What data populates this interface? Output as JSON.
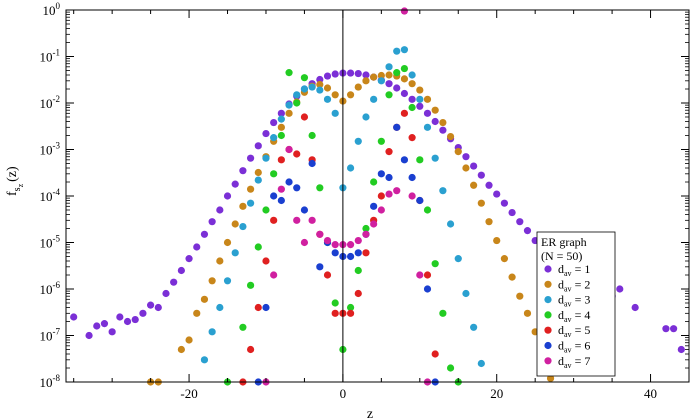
{
  "chart_data": {
    "type": "scatter",
    "title": "",
    "xlabel": "z",
    "ylabel_main": "f",
    "ylabel_sub1": "s",
    "ylabel_sub2": "z",
    "ylabel_tail": "(z)",
    "xlim": [
      -36,
      45
    ],
    "ylim": [
      1e-08,
      1
    ],
    "yscale": "log",
    "grid": false,
    "legend_position": "bottom-right",
    "legend_title_line1": "ER graph",
    "legend_title_line2": "(N = 50)",
    "x_ticks": [
      {
        "value": -20,
        "label": "-20"
      },
      {
        "value": 0,
        "label": "0"
      },
      {
        "value": 20,
        "label": "20"
      },
      {
        "value": 40,
        "label": "40"
      }
    ],
    "y_ticks": [
      {
        "exp": 0,
        "base": "10",
        "sup": "0"
      },
      {
        "exp": -1,
        "base": "10",
        "sup": "-1"
      },
      {
        "exp": -2,
        "base": "10",
        "sup": "-2"
      },
      {
        "exp": -3,
        "base": "10",
        "sup": "-3"
      },
      {
        "exp": -4,
        "base": "10",
        "sup": "-4"
      },
      {
        "exp": -5,
        "base": "10",
        "sup": "-5"
      },
      {
        "exp": -6,
        "base": "10",
        "sup": "-6"
      },
      {
        "exp": -7,
        "base": "10",
        "sup": "-7"
      },
      {
        "exp": -8,
        "base": "10",
        "sup": "-8"
      }
    ],
    "series": [
      {
        "name": "d_av = 1",
        "label_main": "d",
        "label_sub": "av",
        "label_tail": " = 1",
        "color": "#7b2fd6",
        "points": [
          [
            -35,
            2.5e-07
          ],
          [
            -33,
            1e-07
          ],
          [
            -32,
            1.6e-07
          ],
          [
            -31,
            1.8e-07
          ],
          [
            -30,
            1.2e-07
          ],
          [
            -29,
            2.5e-07
          ],
          [
            -28,
            2e-07
          ],
          [
            -27,
            2.2e-07
          ],
          [
            -26,
            3e-07
          ],
          [
            -25,
            4.5e-07
          ],
          [
            -24,
            4e-07
          ],
          [
            -23,
            8e-07
          ],
          [
            -22,
            1.4e-06
          ],
          [
            -21,
            2.5e-06
          ],
          [
            -20,
            4.5e-06
          ],
          [
            -19,
            8e-06
          ],
          [
            -18,
            1.5e-05
          ],
          [
            -17,
            2.8e-05
          ],
          [
            -16,
            5e-05
          ],
          [
            -15,
            0.0001
          ],
          [
            -14,
            0.00018
          ],
          [
            -13,
            0.00035
          ],
          [
            -12,
            0.00065
          ],
          [
            -11,
            0.0012
          ],
          [
            -10,
            0.0022
          ],
          [
            -9,
            0.0038
          ],
          [
            -8,
            0.006
          ],
          [
            -7,
            0.0095
          ],
          [
            -6,
            0.014
          ],
          [
            -5,
            0.02
          ],
          [
            -4,
            0.026
          ],
          [
            -3,
            0.032
          ],
          [
            -2,
            0.038
          ],
          [
            -1,
            0.042
          ],
          [
            0,
            0.044
          ],
          [
            1,
            0.044
          ],
          [
            2,
            0.043
          ],
          [
            3,
            0.04
          ],
          [
            4,
            0.036
          ],
          [
            5,
            0.031
          ],
          [
            6,
            0.026
          ],
          [
            7,
            0.021
          ],
          [
            8,
            0.016
          ],
          [
            9,
            0.012
          ],
          [
            10,
            0.0085
          ],
          [
            11,
            0.006
          ],
          [
            12,
            0.004
          ],
          [
            13,
            0.0026
          ],
          [
            14,
            0.0017
          ],
          [
            15,
            0.0011
          ],
          [
            16,
            0.0007
          ],
          [
            17,
            0.00044
          ],
          [
            18,
            0.00028
          ],
          [
            19,
            0.00017
          ],
          [
            20,
            0.00011
          ],
          [
            21,
            7e-05
          ],
          [
            22,
            4.4e-05
          ],
          [
            23,
            2.8e-05
          ],
          [
            24,
            1.8e-05
          ],
          [
            25,
            1.1e-05
          ],
          [
            26,
            7e-06
          ],
          [
            27,
            4.5e-06
          ],
          [
            28,
            2.8e-06
          ],
          [
            29,
            1.8e-06
          ],
          [
            30,
            1.1e-06
          ],
          [
            31,
            2.5e-06
          ],
          [
            32,
            1.3e-06
          ],
          [
            33,
            9e-07
          ],
          [
            34,
            1.5e-06
          ],
          [
            35,
            7e-07
          ],
          [
            36,
            1e-06
          ],
          [
            38,
            4e-07
          ],
          [
            42,
            1.4e-07
          ],
          [
            43,
            1.4e-07
          ],
          [
            44,
            5e-08
          ]
        ]
      },
      {
        "name": "d_av = 2",
        "label_main": "d",
        "label_sub": "av",
        "label_tail": " = 2",
        "color": "#c8861a",
        "points": [
          [
            -25,
            1e-08
          ],
          [
            -24,
            1e-08
          ],
          [
            -21,
            5e-08
          ],
          [
            -20,
            8e-08
          ],
          [
            -19,
            3e-07
          ],
          [
            -18,
            6e-07
          ],
          [
            -17,
            1.5e-06
          ],
          [
            -16,
            4e-06
          ],
          [
            -15,
            1e-05
          ],
          [
            -14,
            2.5e-05
          ],
          [
            -13,
            6e-05
          ],
          [
            -12,
            0.00014
          ],
          [
            -11,
            0.00032
          ],
          [
            -10,
            0.0007
          ],
          [
            -9,
            0.0015
          ],
          [
            -8,
            0.003
          ],
          [
            -7,
            0.006
          ],
          [
            -6,
            0.0105
          ],
          [
            -5,
            0.017
          ],
          [
            -4,
            0.023
          ],
          [
            -3,
            0.025
          ],
          [
            -2,
            0.021
          ],
          [
            -1,
            0.015
          ],
          [
            0,
            0.011
          ],
          [
            1,
            0.015
          ],
          [
            2,
            0.022
          ],
          [
            3,
            0.03
          ],
          [
            4,
            0.036
          ],
          [
            5,
            0.039
          ],
          [
            6,
            0.04
          ],
          [
            7,
            0.038
          ],
          [
            8,
            0.033
          ],
          [
            9,
            0.026
          ],
          [
            10,
            0.019
          ],
          [
            11,
            0.012
          ],
          [
            12,
            0.007
          ],
          [
            13,
            0.0038
          ],
          [
            14,
            0.0019
          ],
          [
            15,
            0.0009
          ],
          [
            16,
            0.0004
          ],
          [
            17,
            0.00017
          ],
          [
            18,
            7e-05
          ],
          [
            19,
            2.8e-05
          ],
          [
            20,
            1.1e-05
          ],
          [
            21,
            4.5e-06
          ],
          [
            22,
            1.8e-06
          ],
          [
            23,
            7e-07
          ],
          [
            24,
            3e-07
          ],
          [
            25,
            1.2e-07
          ],
          [
            26,
            5e-08
          ],
          [
            27,
            1.2e-08
          ]
        ]
      },
      {
        "name": "d_av = 3",
        "label_main": "d",
        "label_sub": "av",
        "label_tail": " = 3",
        "color": "#2aa0d0",
        "points": [
          [
            -18,
            3e-08
          ],
          [
            -17,
            1.2e-07
          ],
          [
            -16,
            4e-07
          ],
          [
            -15,
            1.5e-06
          ],
          [
            -14,
            6e-06
          ],
          [
            -13,
            2.2e-05
          ],
          [
            -12,
            7e-05
          ],
          [
            -11,
            0.00022
          ],
          [
            -10,
            0.00065
          ],
          [
            -9,
            0.0018
          ],
          [
            -8,
            0.0045
          ],
          [
            -7,
            0.009
          ],
          [
            -6,
            0.015
          ],
          [
            -5,
            0.02
          ],
          [
            -4,
            0.022
          ],
          [
            -3,
            0.019
          ],
          [
            -2,
            0.012
          ],
          [
            -1,
            0.006
          ],
          [
            0,
            0.00015
          ],
          [
            1,
            0.0004
          ],
          [
            2,
            0.0015
          ],
          [
            3,
            0.005
          ],
          [
            4,
            0.012
          ],
          [
            5,
            0.03
          ],
          [
            6,
            0.06
          ],
          [
            7,
            0.13
          ],
          [
            8,
            0.14
          ],
          [
            9,
            0.04
          ],
          [
            10,
            0.012
          ],
          [
            11,
            0.003
          ],
          [
            12,
            0.00065
          ],
          [
            13,
            0.00013
          ],
          [
            14,
            2.5e-05
          ],
          [
            15,
            4.5e-06
          ],
          [
            16,
            8e-07
          ],
          [
            17,
            1.5e-07
          ],
          [
            18,
            2.5e-08
          ]
        ]
      },
      {
        "name": "d_av = 4",
        "label_main": "d",
        "label_sub": "av",
        "label_tail": " = 4",
        "color": "#22cc22",
        "points": [
          [
            -15,
            1e-08
          ],
          [
            -13,
            1.5e-07
          ],
          [
            -12,
            1.2e-06
          ],
          [
            -11,
            8e-06
          ],
          [
            -10,
            5e-05
          ],
          [
            -9,
            0.0003
          ],
          [
            -8,
            0.002
          ],
          [
            -7,
            0.045
          ],
          [
            -6,
            0.01
          ],
          [
            -5,
            0.035
          ],
          [
            -4,
            0.002
          ],
          [
            -3,
            0.00015
          ],
          [
            -2,
            1e-05
          ],
          [
            -1,
            5e-07
          ],
          [
            0,
            5e-08
          ],
          [
            1,
            4e-07
          ],
          [
            2,
            2.5e-06
          ],
          [
            3,
            2e-05
          ],
          [
            4,
            0.0002
          ],
          [
            5,
            0.0015
          ],
          [
            6,
            0.015
          ],
          [
            7,
            0.045
          ],
          [
            8,
            0.055
          ],
          [
            9,
            0.008
          ],
          [
            10,
            0.0006
          ],
          [
            11,
            5e-05
          ],
          [
            12,
            3.5e-06
          ],
          [
            13,
            3e-07
          ],
          [
            14,
            2e-08
          ],
          [
            15,
            1e-08
          ]
        ]
      },
      {
        "name": "d_av = 5",
        "label_main": "d",
        "label_sub": "av",
        "label_tail": " = 5",
        "color": "#e02020",
        "points": [
          [
            -13,
            1e-08
          ],
          [
            -12,
            5e-08
          ],
          [
            -11,
            4e-07
          ],
          [
            -10,
            4e-06
          ],
          [
            -9,
            3e-05
          ],
          [
            -8,
            0.0006
          ],
          [
            -7,
            0.001
          ],
          [
            -6,
            0.0008
          ],
          [
            -5,
            0.005
          ],
          [
            -4,
            0.0006
          ],
          [
            -3,
            1.5e-05
          ],
          [
            -2,
            2e-06
          ],
          [
            -1,
            3e-07
          ],
          [
            0,
            3e-07
          ],
          [
            1,
            3e-07
          ],
          [
            2,
            8e-07
          ],
          [
            3,
            6e-06
          ],
          [
            4,
            3e-05
          ],
          [
            5,
            0.0001
          ],
          [
            6,
            0.0009
          ],
          [
            7,
            0.003
          ],
          [
            8,
            0.006
          ],
          [
            9,
            0.0018
          ],
          [
            10,
            8e-05
          ],
          [
            11,
            2e-06
          ],
          [
            12,
            4e-08
          ]
        ]
      },
      {
        "name": "d_av = 6",
        "label_main": "d",
        "label_sub": "av",
        "label_tail": " = 6",
        "color": "#1a3fd0",
        "points": [
          [
            -11,
            1e-08
          ],
          [
            -10,
            4e-07
          ],
          [
            -9,
            0.0001
          ],
          [
            -8,
            8e-05
          ],
          [
            -7,
            0.0002
          ],
          [
            -6,
            0.00015
          ],
          [
            -5,
            5e-05
          ],
          [
            -4,
            0.0005
          ],
          [
            -3,
            3e-06
          ],
          [
            -2,
            1e-05
          ],
          [
            -1,
            6e-06
          ],
          [
            0,
            5e-06
          ],
          [
            1,
            5e-06
          ],
          [
            2,
            6e-06
          ],
          [
            3,
            1.5e-05
          ],
          [
            4,
            6e-05
          ],
          [
            5,
            0.0003
          ],
          [
            6,
            0.00025
          ],
          [
            7,
            0.003
          ],
          [
            8,
            0.0006
          ],
          [
            9,
            0.00025
          ],
          [
            10,
            8e-05
          ],
          [
            11,
            1e-06
          ],
          [
            12,
            1e-08
          ]
        ]
      },
      {
        "name": "d_av = 7",
        "label_main": "d",
        "label_sub": "av",
        "label_tail": " = 7",
        "color": "#d020a0",
        "points": [
          [
            -10,
            1e-08
          ],
          [
            -9,
            2e-06
          ],
          [
            -8,
            0.00014
          ],
          [
            -7,
            0.001
          ],
          [
            -6,
            3e-05
          ],
          [
            -5,
            1e-05
          ],
          [
            -4,
            3e-05
          ],
          [
            -3,
            1.5e-05
          ],
          [
            -2,
            1.1e-05
          ],
          [
            -1,
            9e-06
          ],
          [
            0,
            9e-06
          ],
          [
            1,
            9e-06
          ],
          [
            2,
            1.1e-05
          ],
          [
            3,
            1.5e-05
          ],
          [
            4,
            2.5e-05
          ],
          [
            5,
            5e-05
          ],
          [
            6,
            0.00011
          ],
          [
            7,
            0.00013
          ],
          [
            8,
            0.95
          ],
          [
            9,
            0.0001
          ],
          [
            10,
            2e-06
          ],
          [
            11,
            1e-08
          ]
        ]
      }
    ]
  }
}
